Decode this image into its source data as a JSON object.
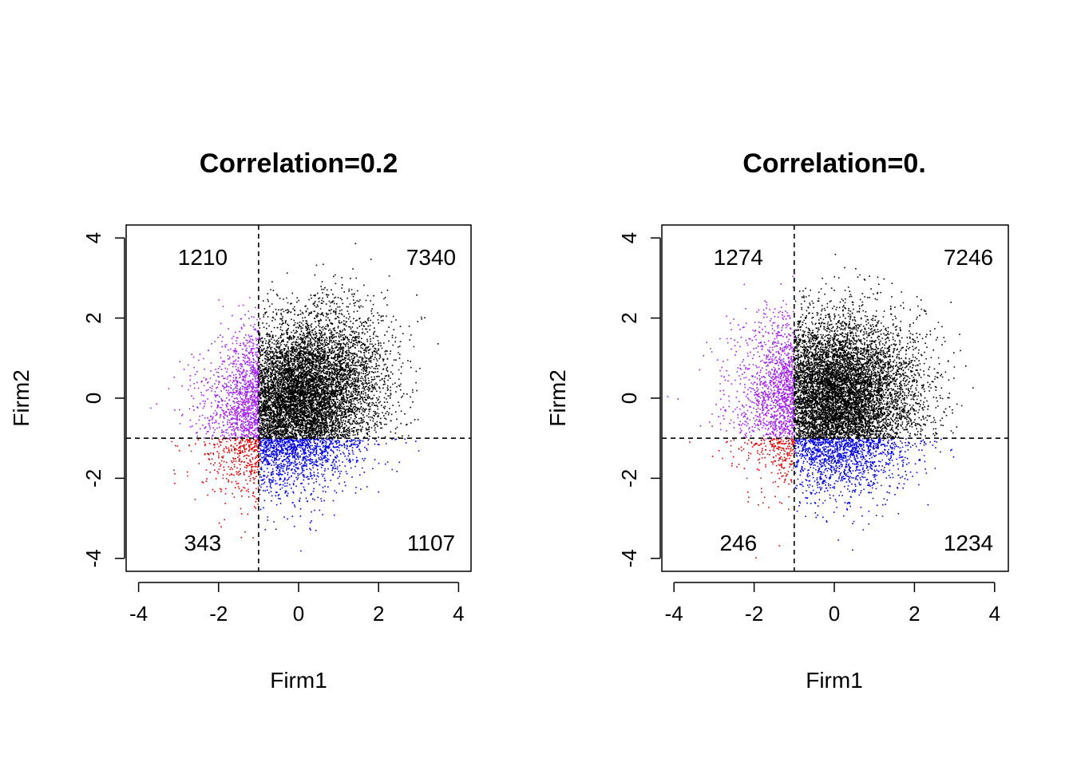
{
  "chart_data": [
    {
      "type": "scatter",
      "title": "Correlation=0.2",
      "xlabel": "Firm1",
      "ylabel": "Firm2",
      "xlim": [
        -4.3,
        4.3
      ],
      "ylim": [
        -4.3,
        4.3
      ],
      "xticks": [
        "-4",
        "-2",
        "0",
        "2",
        "4"
      ],
      "yticks": [
        "-4",
        "-2",
        "0",
        "2",
        "4"
      ],
      "correlation": 0.2,
      "threshold": {
        "x": -1.0,
        "y": -1.0
      },
      "grid": false,
      "reference_lines": "dashed at x=-1 and y=-1",
      "quadrants": [
        {
          "region": "top-left",
          "count": "1210",
          "color": "#a020f0"
        },
        {
          "region": "top-right",
          "count": "7340",
          "color": "#000000"
        },
        {
          "region": "bottom-left",
          "count": "343",
          "color": "#e00000"
        },
        {
          "region": "bottom-right",
          "count": "1107",
          "color": "#0000e6"
        }
      ]
    },
    {
      "type": "scatter",
      "title": "Correlation=0.",
      "xlabel": "Firm1",
      "ylabel": "Firm2",
      "xlim": [
        -4.3,
        4.3
      ],
      "ylim": [
        -4.3,
        4.3
      ],
      "xticks": [
        "-4",
        "-2",
        "0",
        "2",
        "4"
      ],
      "yticks": [
        "-4",
        "-2",
        "0",
        "2",
        "4"
      ],
      "correlation": 0.0,
      "threshold": {
        "x": -1.0,
        "y": -1.0
      },
      "grid": false,
      "reference_lines": "dashed at x=-1 and y=-1",
      "quadrants": [
        {
          "region": "top-left",
          "count": "1274",
          "color": "#a020f0"
        },
        {
          "region": "top-right",
          "count": "7246",
          "color": "#000000"
        },
        {
          "region": "bottom-left",
          "count": "246",
          "color": "#e00000"
        },
        {
          "region": "bottom-right",
          "count": "1234",
          "color": "#0000e6"
        }
      ]
    }
  ]
}
